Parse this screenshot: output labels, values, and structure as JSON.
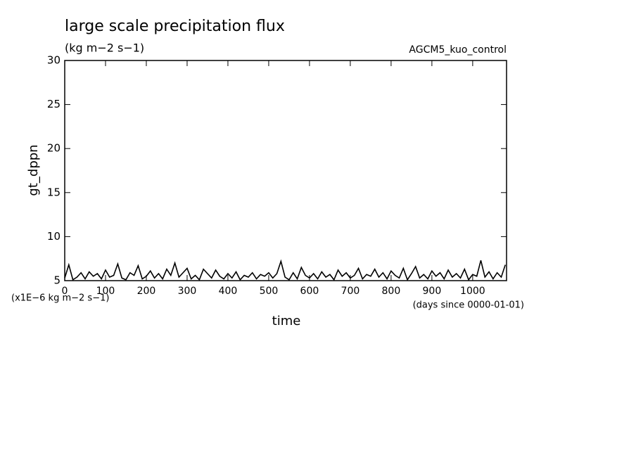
{
  "chart_data": {
    "type": "line",
    "title": "large scale precipitation flux",
    "subtitle": "(kg m−2 s−1)",
    "annotation": "AGCM5_kuo_control",
    "y_label": "gt_dppn",
    "x_label": "time",
    "y_units": "(x1E−6 kg m−2 s−1)",
    "x_units": "(days since 0000-01-01)",
    "x": [
      0,
      10,
      20,
      30,
      40,
      50,
      60,
      70,
      80,
      90,
      100,
      110,
      120,
      130,
      140,
      150,
      160,
      170,
      180,
      190,
      200,
      210,
      220,
      230,
      240,
      250,
      260,
      270,
      280,
      290,
      300,
      310,
      320,
      330,
      340,
      350,
      360,
      370,
      380,
      390,
      400,
      410,
      420,
      430,
      440,
      450,
      460,
      470,
      480,
      490,
      500,
      510,
      520,
      530,
      540,
      550,
      560,
      570,
      580,
      590,
      600,
      610,
      620,
      630,
      640,
      650,
      660,
      670,
      680,
      690,
      700,
      710,
      720,
      730,
      740,
      750,
      760,
      770,
      780,
      790,
      800,
      810,
      820,
      830,
      840,
      850,
      860,
      870,
      880,
      890,
      900,
      910,
      920,
      930,
      940,
      950,
      960,
      970,
      980,
      990,
      1000,
      1010,
      1020,
      1030,
      1040,
      1050,
      1060,
      1070,
      1080
    ],
    "series": [
      {
        "name": "gt_dppn",
        "color": "#000000",
        "values": [
          5.3,
          6.8,
          5.1,
          5.4,
          5.9,
          5.2,
          6.0,
          5.5,
          5.8,
          5.2,
          6.2,
          5.4,
          5.6,
          6.9,
          5.3,
          5.1,
          5.9,
          5.6,
          6.7,
          5.2,
          5.5,
          6.1,
          5.3,
          5.8,
          5.2,
          6.3,
          5.6,
          7.0,
          5.4,
          5.9,
          6.4,
          5.2,
          5.6,
          5.1,
          6.3,
          5.8,
          5.3,
          6.2,
          5.5,
          5.2,
          5.8,
          5.3,
          6.0,
          5.1,
          5.6,
          5.4,
          5.9,
          5.2,
          5.7,
          5.5,
          5.9,
          5.3,
          5.8,
          7.2,
          5.4,
          5.1,
          5.9,
          5.2,
          6.5,
          5.6,
          5.3,
          5.8,
          5.2,
          6.0,
          5.4,
          5.7,
          5.1,
          6.2,
          5.5,
          5.9,
          5.3,
          5.6,
          6.4,
          5.2,
          5.7,
          5.5,
          6.3,
          5.4,
          5.9,
          5.2,
          6.1,
          5.6,
          5.3,
          6.4,
          5.1,
          5.8,
          6.6,
          5.3,
          5.7,
          5.2,
          6.1,
          5.5,
          5.9,
          5.2,
          6.2,
          5.4,
          5.8,
          5.3,
          6.3,
          5.1,
          5.7,
          5.5,
          7.3,
          5.4,
          6.0,
          5.2,
          5.9,
          5.4,
          6.8
        ]
      }
    ],
    "xlim": [
      0,
      1083
    ],
    "xticks": [
      0,
      100,
      200,
      300,
      400,
      500,
      600,
      700,
      800,
      900,
      1000
    ],
    "ylim": [
      5,
      30
    ],
    "yticks": [
      5,
      10,
      15,
      20,
      25,
      30
    ]
  }
}
